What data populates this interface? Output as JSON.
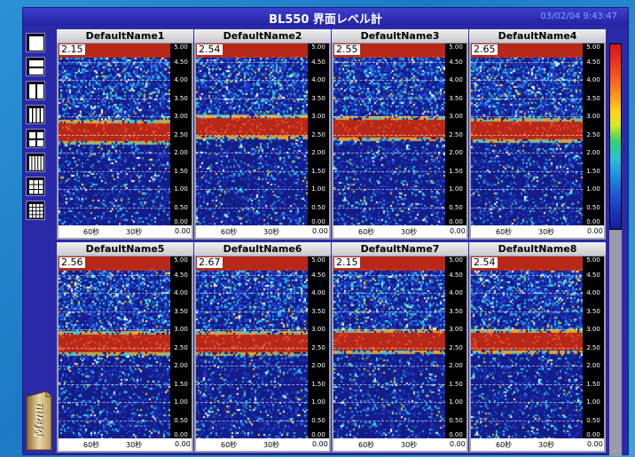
{
  "app": {
    "title": "BL550 界面レベル計",
    "datetime": "03/02/04 9:43:47"
  },
  "toolbar": {
    "layouts": [
      "layout-1x1",
      "layout-2-rows",
      "layout-2-cols",
      "layout-4-cols",
      "layout-2x2",
      "layout-5-cols",
      "layout-3x3",
      "layout-4x4"
    ]
  },
  "menu": {
    "label": "Menu"
  },
  "y_ticks": [
    "5.00",
    "4.50",
    "4.00",
    "3.50",
    "3.00",
    "2.50",
    "2.00",
    "1.50",
    "1.00",
    "0.50",
    "0.00"
  ],
  "x_ticks": [
    "60秒",
    "30秒",
    "0.00"
  ],
  "panels": [
    {
      "name": "DefaultName1",
      "value": "2.15",
      "band": 0.52
    },
    {
      "name": "DefaultName2",
      "value": "2.54",
      "band": 0.55
    },
    {
      "name": "DefaultName3",
      "value": "2.55",
      "band": 0.54
    },
    {
      "name": "DefaultName4",
      "value": "2.65",
      "band": 0.53
    },
    {
      "name": "DefaultName5",
      "value": "2.56",
      "band": 0.53
    },
    {
      "name": "DefaultName6",
      "value": "2.67",
      "band": 0.53
    },
    {
      "name": "DefaultName7",
      "value": "2.15",
      "band": 0.54
    },
    {
      "name": "DefaultName8",
      "value": "2.54",
      "band": 0.54
    }
  ],
  "colors": {
    "frame": "#2a2aa8",
    "signal_low": "#1a1a8a",
    "signal_high": "#c8281a",
    "desktop": "#1d79c4"
  }
}
